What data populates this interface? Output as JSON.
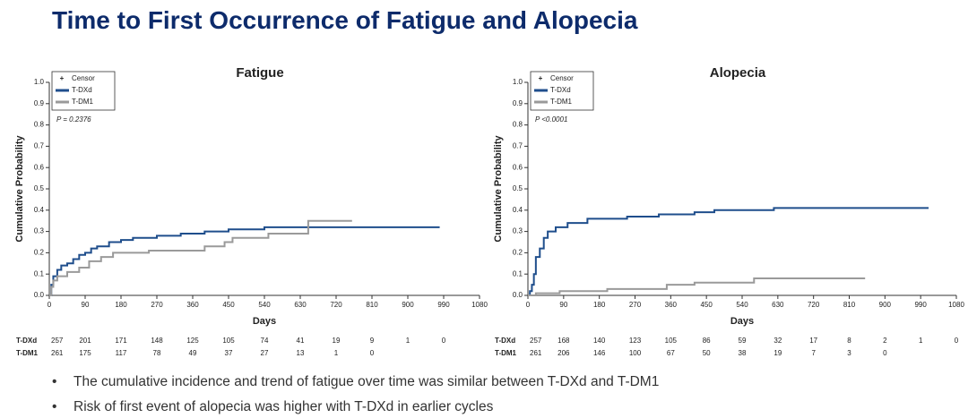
{
  "title": "Time to First Occurrence of Fatigue and Alopecia",
  "chart_data": [
    {
      "type": "line",
      "title": "Fatigue",
      "x_label": "Days",
      "y_label": "Cumulative Probability",
      "annotation": "P = 0.2376",
      "censor_label": "Censor",
      "xlim": [
        0,
        1080
      ],
      "xticks": [
        0,
        90,
        180,
        270,
        360,
        450,
        540,
        630,
        720,
        810,
        900,
        990,
        1080
      ],
      "ylim": [
        0,
        1
      ],
      "yticks": [
        {
          "value": 0,
          "label": "0.0"
        },
        0.1,
        0.2,
        0.3,
        0.4,
        0.5,
        0.6,
        0.7,
        0.8,
        0.9,
        {
          "value": 1,
          "label": "1.0"
        }
      ],
      "series": [
        {
          "name": "T-DXd",
          "color": "#1f4e8c",
          "x": [
            0,
            5,
            5,
            10,
            10,
            20,
            20,
            30,
            30,
            45,
            45,
            60,
            60,
            75,
            75,
            90,
            90,
            105,
            105,
            120,
            120,
            150,
            150,
            180,
            180,
            210,
            210,
            270,
            270,
            330,
            330,
            390,
            390,
            450,
            450,
            540,
            540,
            980
          ],
          "values": [
            0,
            0,
            0.05,
            0.05,
            0.09,
            0.09,
            0.12,
            0.12,
            0.14,
            0.14,
            0.15,
            0.15,
            0.17,
            0.17,
            0.19,
            0.19,
            0.2,
            0.2,
            0.22,
            0.22,
            0.23,
            0.23,
            0.25,
            0.25,
            0.26,
            0.26,
            0.27,
            0.27,
            0.28,
            0.28,
            0.29,
            0.29,
            0.3,
            0.3,
            0.31,
            0.31,
            0.32,
            0.32
          ]
        },
        {
          "name": "T-DM1",
          "color": "#9a9a9a",
          "x": [
            0,
            5,
            5,
            10,
            10,
            20,
            20,
            45,
            45,
            75,
            75,
            100,
            100,
            130,
            130,
            160,
            160,
            250,
            250,
            390,
            390,
            440,
            440,
            460,
            460,
            550,
            550,
            650,
            650,
            760
          ],
          "values": [
            0,
            0,
            0.04,
            0.04,
            0.07,
            0.07,
            0.09,
            0.09,
            0.11,
            0.11,
            0.13,
            0.13,
            0.16,
            0.16,
            0.18,
            0.18,
            0.2,
            0.2,
            0.21,
            0.21,
            0.23,
            0.23,
            0.25,
            0.25,
            0.27,
            0.27,
            0.29,
            0.29,
            0.35,
            0.35
          ]
        }
      ],
      "risk_table": [
        {
          "name": "T-DXd",
          "values": [
            257,
            201,
            171,
            148,
            125,
            105,
            74,
            41,
            19,
            9,
            1,
            0
          ]
        },
        {
          "name": "T-DM1",
          "values": [
            261,
            175,
            117,
            78,
            49,
            37,
            27,
            13,
            1,
            0
          ]
        }
      ]
    },
    {
      "type": "line",
      "title": "Alopecia",
      "x_label": "Days",
      "y_label": "Cumulative Probability",
      "annotation": "P <0.0001",
      "censor_label": "Censor",
      "xlim": [
        0,
        1080
      ],
      "xticks": [
        0,
        90,
        180,
        270,
        360,
        450,
        540,
        630,
        720,
        810,
        900,
        990,
        1080
      ],
      "ylim": [
        0,
        1
      ],
      "yticks": [
        {
          "value": 0,
          "label": "0.0"
        },
        0.1,
        0.2,
        0.3,
        0.4,
        0.5,
        0.6,
        0.7,
        0.8,
        0.9,
        {
          "value": 1,
          "label": "1.0"
        }
      ],
      "series": [
        {
          "name": "T-DXd",
          "color": "#1f4e8c",
          "x": [
            0,
            5,
            5,
            10,
            10,
            15,
            15,
            20,
            20,
            30,
            30,
            40,
            40,
            50,
            50,
            70,
            70,
            100,
            100,
            150,
            150,
            250,
            250,
            330,
            330,
            420,
            420,
            470,
            470,
            620,
            620,
            1010
          ],
          "values": [
            0,
            0,
            0.02,
            0.02,
            0.05,
            0.05,
            0.1,
            0.1,
            0.18,
            0.18,
            0.22,
            0.22,
            0.27,
            0.27,
            0.3,
            0.3,
            0.32,
            0.32,
            0.34,
            0.34,
            0.36,
            0.36,
            0.37,
            0.37,
            0.38,
            0.38,
            0.39,
            0.39,
            0.4,
            0.4,
            0.41,
            0.41
          ]
        },
        {
          "name": "T-DM1",
          "color": "#9a9a9a",
          "x": [
            0,
            20,
            20,
            80,
            80,
            200,
            200,
            350,
            350,
            420,
            420,
            570,
            570,
            850
          ],
          "values": [
            0,
            0,
            0.01,
            0.01,
            0.02,
            0.02,
            0.03,
            0.03,
            0.05,
            0.05,
            0.06,
            0.06,
            0.08,
            0.08
          ]
        }
      ],
      "risk_table": [
        {
          "name": "T-DXd",
          "values": [
            257,
            168,
            140,
            123,
            105,
            86,
            59,
            32,
            17,
            8,
            2,
            1,
            0
          ]
        },
        {
          "name": "T-DM1",
          "values": [
            261,
            206,
            146,
            100,
            67,
            50,
            38,
            19,
            7,
            3,
            0
          ]
        }
      ]
    }
  ],
  "bullets": [
    "The cumulative incidence and trend of fatigue over time was similar between T-DXd and T-DM1",
    "Risk of first event of alopecia was higher with T-DXd in earlier cycles"
  ]
}
